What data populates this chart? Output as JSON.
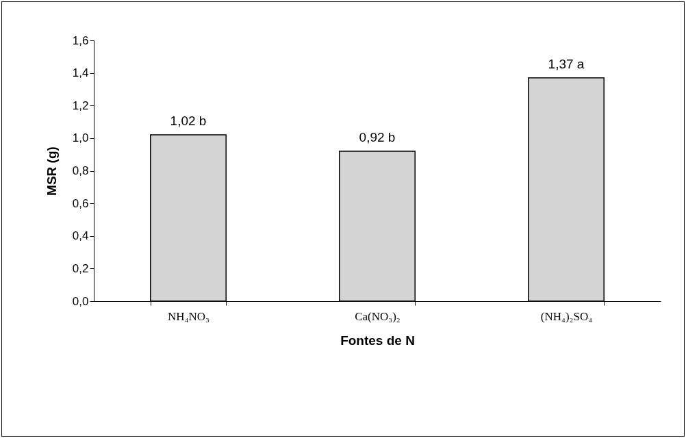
{
  "chart_data": {
    "type": "bar",
    "xlabel": "Fontes de N",
    "ylabel": "MSR (g)",
    "categories": [
      "NH₄NO₃",
      "Ca(NO₃)₂",
      "(NH₄)₂SO₄"
    ],
    "values": [
      1.02,
      0.92,
      1.37
    ],
    "value_labels": [
      "1,02 b",
      "0,92 b",
      "1,37 a"
    ],
    "color": "#d4d4d4",
    "ylim": [
      0,
      1.6
    ],
    "yticks": [
      {
        "value": 0,
        "label": "0,0"
      },
      {
        "value": 0.2,
        "label": "0,2"
      },
      {
        "value": 0.4,
        "label": "0,4"
      },
      {
        "value": 0.6,
        "label": "0,6"
      },
      {
        "value": 0.8,
        "label": "0,8"
      },
      {
        "value": 1.0,
        "label": "1,0"
      },
      {
        "value": 1.2,
        "label": "1,2"
      },
      {
        "value": 1.4,
        "label": "1,4"
      },
      {
        "value": 1.6,
        "label": "1,6"
      }
    ],
    "grid": false
  }
}
